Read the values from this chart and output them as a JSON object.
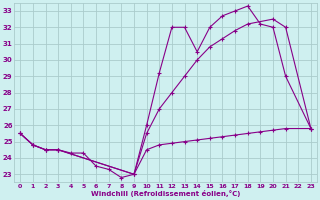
{
  "background_color": "#cff0f0",
  "grid_color": "#aacccc",
  "line_color": "#880088",
  "xlabel": "Windchill (Refroidissement éolien,°C)",
  "xlim": [
    -0.5,
    23.5
  ],
  "ylim": [
    22.5,
    33.5
  ],
  "xticks": [
    0,
    1,
    2,
    3,
    4,
    5,
    6,
    7,
    8,
    9,
    10,
    11,
    12,
    13,
    14,
    15,
    16,
    17,
    18,
    19,
    20,
    21,
    22,
    23
  ],
  "yticks": [
    23,
    24,
    25,
    26,
    27,
    28,
    29,
    30,
    31,
    32,
    33
  ],
  "series": [
    {
      "x": [
        0,
        1,
        2,
        3,
        9,
        10,
        11,
        12,
        13,
        14,
        15,
        16,
        17,
        18,
        19,
        20,
        21,
        23
      ],
      "y": [
        25.5,
        24.8,
        24.5,
        24.5,
        23.0,
        26.0,
        29.2,
        32.0,
        32.0,
        30.5,
        32.0,
        32.7,
        33.0,
        33.3,
        32.2,
        32.0,
        29.0,
        25.8
      ]
    },
    {
      "x": [
        0,
        1,
        2,
        3,
        9,
        10,
        11,
        12,
        13,
        14,
        15,
        16,
        17,
        18,
        20,
        21,
        23
      ],
      "y": [
        25.5,
        24.8,
        24.5,
        24.5,
        23.0,
        25.5,
        27.0,
        28.0,
        29.0,
        30.0,
        30.8,
        31.3,
        31.8,
        32.2,
        32.5,
        32.0,
        25.8
      ]
    },
    {
      "x": [
        0,
        1,
        2,
        3,
        4,
        5,
        6,
        7,
        8,
        9,
        10,
        11,
        12,
        13,
        14,
        15,
        16,
        17,
        18,
        19,
        20,
        21,
        23
      ],
      "y": [
        25.5,
        24.8,
        24.5,
        24.5,
        24.3,
        24.3,
        23.5,
        23.3,
        22.8,
        23.0,
        24.5,
        24.8,
        24.9,
        25.0,
        25.1,
        25.2,
        25.3,
        25.4,
        25.5,
        25.6,
        25.7,
        25.8,
        25.8
      ]
    }
  ]
}
